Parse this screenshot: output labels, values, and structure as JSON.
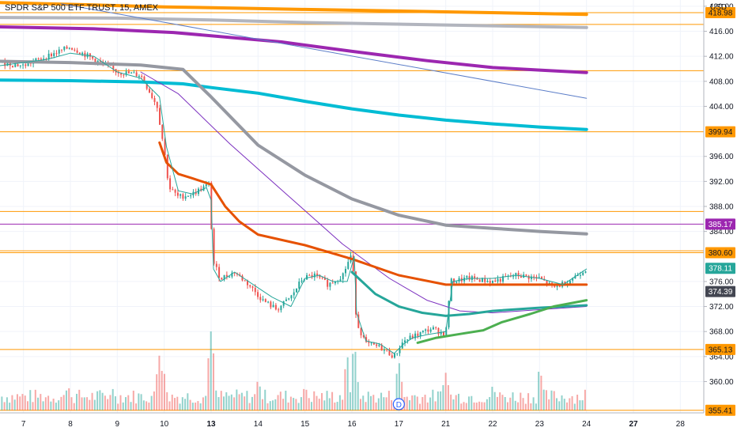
{
  "header": {
    "title": "SPDR S&P 500 ETF TRUST, 15, AMEX",
    "currency": "USD"
  },
  "chart_data": {
    "type": "candlestick",
    "title": "SPDR S&P 500 ETF TRUST, 15, AMEX",
    "ylabel": "USD",
    "ylim": [
      355,
      421
    ],
    "xlim": [
      -0.5,
      14.5
    ],
    "grid": true,
    "y_ticks": [
      360,
      364,
      368,
      372,
      376,
      384,
      388,
      392,
      396,
      404,
      408,
      412,
      416,
      420
    ],
    "x_ticks": [
      {
        "label": "7",
        "pos": 0,
        "bold": false
      },
      {
        "label": "8",
        "pos": 1,
        "bold": false
      },
      {
        "label": "9",
        "pos": 2,
        "bold": false
      },
      {
        "label": "10",
        "pos": 3,
        "bold": false
      },
      {
        "label": "13",
        "pos": 4,
        "bold": true
      },
      {
        "label": "14",
        "pos": 5,
        "bold": false
      },
      {
        "label": "15",
        "pos": 6,
        "bold": false
      },
      {
        "label": "16",
        "pos": 7,
        "bold": false
      },
      {
        "label": "17",
        "pos": 8,
        "bold": false
      },
      {
        "label": "21",
        "pos": 9,
        "bold": false
      },
      {
        "label": "22",
        "pos": 10,
        "bold": false
      },
      {
        "label": "23",
        "pos": 11,
        "bold": false
      },
      {
        "label": "24",
        "pos": 12,
        "bold": false
      },
      {
        "label": "27",
        "pos": 13,
        "bold": true
      },
      {
        "label": "28",
        "pos": 14,
        "bold": false
      }
    ],
    "price_tags": [
      {
        "value": 418.98,
        "label": "418.98",
        "color": "#ff9800",
        "text_color": "#131722"
      },
      {
        "value": 399.94,
        "label": "399.94",
        "color": "#ff9800",
        "text_color": "#131722"
      },
      {
        "value": 385.17,
        "label": "385.17",
        "color": "#9c27b0",
        "text_color": "#ffffff"
      },
      {
        "value": 380.6,
        "label": "380.60",
        "color": "#ff9800",
        "text_color": "#131722"
      },
      {
        "value": 378.11,
        "label": "378.11",
        "color": "#26a69a",
        "text_color": "#ffffff"
      },
      {
        "value": 374.39,
        "label": "374.39",
        "color": "#434651",
        "text_color": "#ffffff"
      },
      {
        "value": 365.13,
        "label": "365.13",
        "color": "#ff9800",
        "text_color": "#131722"
      },
      {
        "value": 355.41,
        "label": "355.41",
        "color": "#ff9800",
        "text_color": "#131722"
      }
    ],
    "horizontal_levels": [
      {
        "value": 418.98,
        "color": "#ff9800"
      },
      {
        "value": 417.1,
        "color": "#ff9800"
      },
      {
        "value": 409.7,
        "color": "#ff9800"
      },
      {
        "value": 399.94,
        "color": "#ff9800"
      },
      {
        "value": 387.2,
        "color": "#ff9800"
      },
      {
        "value": 385.17,
        "color": "#9c27b0"
      },
      {
        "value": 380.9,
        "color": "#ff9800"
      },
      {
        "value": 380.6,
        "color": "#ff9800"
      },
      {
        "value": 365.13,
        "color": "#ff9800"
      },
      {
        "value": 355.41,
        "color": "#ff9800"
      }
    ],
    "series": [
      {
        "id": "orange-top",
        "color": "#ff9800",
        "width": 4,
        "x": [
          -0.5,
          1,
          3,
          6,
          9,
          12
        ],
        "y": [
          420.6,
          420.3,
          419.9,
          419.5,
          419.1,
          418.7
        ]
      },
      {
        "id": "gray-top",
        "color": "#b2b5be",
        "width": 4,
        "x": [
          -0.5,
          2,
          4,
          6,
          9,
          12
        ],
        "y": [
          418.2,
          418.1,
          417.8,
          417.4,
          417.0,
          416.6
        ]
      },
      {
        "id": "purple-wide",
        "color": "#9c27b0",
        "width": 4,
        "x": [
          -0.5,
          1.5,
          3.2,
          5.5,
          7,
          8.6,
          10,
          11,
          12
        ],
        "y": [
          416.7,
          416.4,
          415.8,
          414.3,
          412.8,
          411.3,
          410.2,
          409.8,
          409.4
        ]
      },
      {
        "id": "blue-trend",
        "color": "#5b7dc8",
        "width": 1,
        "x": [
          0.8,
          12
        ],
        "y": [
          420.4,
          405.3
        ]
      },
      {
        "id": "cyan-wide",
        "color": "#00bcd4",
        "width": 4,
        "x": [
          -0.5,
          1,
          2.5,
          3.4,
          4,
          5,
          6,
          7,
          8,
          9,
          10,
          11,
          12
        ],
        "y": [
          408.2,
          408.1,
          407.9,
          407.6,
          407.0,
          406.1,
          404.8,
          403.6,
          402.6,
          401.8,
          401.2,
          400.7,
          400.3
        ]
      },
      {
        "id": "gray-wide",
        "color": "#9598a1",
        "width": 4,
        "x": [
          -0.5,
          1,
          2.5,
          3.4,
          4,
          5,
          6,
          7,
          8,
          9,
          10,
          11,
          12
        ],
        "y": [
          411.2,
          411.0,
          410.6,
          409.9,
          405.5,
          397.8,
          393.0,
          389.2,
          386.6,
          385.0,
          384.5,
          384.0,
          383.6
        ]
      },
      {
        "id": "purple-thin",
        "color": "#7b2fbf",
        "width": 1,
        "x": [
          2.5,
          3.3,
          4.4,
          5.6,
          6.8,
          7.8,
          8.6,
          9.3,
          10,
          11,
          12
        ],
        "y": [
          409.5,
          406.0,
          398.0,
          390.0,
          382.0,
          376.5,
          373.0,
          371.3,
          371.0,
          371.5,
          372.0
        ]
      },
      {
        "id": "red-wide",
        "color": "#e65100",
        "width": 3,
        "x": [
          2.9,
          3.05,
          3.3,
          3.6,
          4.0,
          4.3,
          4.6,
          5.0,
          6.0,
          7.0,
          8.0,
          9.0,
          10.0,
          11.0,
          12.0
        ],
        "y": [
          398.2,
          395.0,
          393.2,
          392.5,
          391.5,
          388.0,
          385.6,
          383.5,
          381.8,
          379.6,
          377.0,
          375.5,
          375.5,
          375.5,
          375.5
        ]
      },
      {
        "id": "teal-wide",
        "color": "#26a69a",
        "width": 3,
        "x": [
          7.0,
          7.5,
          8.0,
          8.5,
          9.0,
          9.5,
          10.0,
          11.0,
          12.0
        ],
        "y": [
          377.5,
          374.0,
          372.0,
          371.0,
          370.5,
          370.8,
          371.3,
          371.8,
          372.2
        ]
      },
      {
        "id": "green-wide",
        "color": "#4caf50",
        "width": 3,
        "x": [
          8.4,
          8.8,
          9.3,
          9.8,
          10.2,
          10.8,
          11.3,
          12.0
        ],
        "y": [
          366.2,
          367.0,
          367.6,
          368.2,
          369.5,
          370.8,
          372.0,
          373.0
        ]
      },
      {
        "id": "price-ma",
        "color": "#26a69a",
        "width": 1,
        "x": [
          -0.5,
          0.5,
          1,
          1.5,
          2,
          2.5,
          2.9,
          3.05,
          3.3,
          3.6,
          3.9,
          4.0,
          4.05,
          4.2,
          4.5,
          4.9,
          5.3,
          5.7,
          6.0,
          6.3,
          6.6,
          6.9,
          7.05,
          7.1,
          7.3,
          7.6,
          7.9,
          8.1,
          8.3,
          8.6,
          9.0,
          9.15,
          9.5,
          10.0,
          10.5,
          11.0,
          11.5,
          12.0
        ],
        "y": [
          410.5,
          411.5,
          412.5,
          412.0,
          409.5,
          408.5,
          405.5,
          397.5,
          390.5,
          390.0,
          391.0,
          389.0,
          378.0,
          376.0,
          377.5,
          375.5,
          373.5,
          372.0,
          376.5,
          377.0,
          376.0,
          376.0,
          380.0,
          371.0,
          366.5,
          366.0,
          364.5,
          366.0,
          367.0,
          367.5,
          368.0,
          376.0,
          376.5,
          376.5,
          377.0,
          376.5,
          375.5,
          378.0
        ]
      }
    ],
    "candles": {
      "up_color": "#26a69a",
      "down_color": "#ef5350",
      "anchors_x": [
        -0.5,
        0.0,
        0.5,
        1.0,
        1.5,
        2.0,
        2.5,
        2.85,
        3.0,
        3.1,
        3.3,
        3.6,
        3.95,
        4.05,
        4.2,
        4.5,
        4.8,
        5.1,
        5.4,
        5.7,
        5.95,
        6.2,
        6.5,
        6.8,
        7.0,
        7.1,
        7.3,
        7.6,
        7.9,
        8.1,
        8.4,
        8.7,
        9.0,
        9.1,
        9.5,
        10.0,
        10.5,
        11.0,
        11.3,
        11.6,
        12.0
      ],
      "anchors_y": [
        411.0,
        410.5,
        412.0,
        413.5,
        411.5,
        409.5,
        409.0,
        404.0,
        397.0,
        391.0,
        389.5,
        390.0,
        391.5,
        379.0,
        376.5,
        377.5,
        375.5,
        373.0,
        371.5,
        373.5,
        376.5,
        377.0,
        375.5,
        377.0,
        380.5,
        369.5,
        366.0,
        365.5,
        364.0,
        366.5,
        367.5,
        368.5,
        367.5,
        376.0,
        376.5,
        376.0,
        377.0,
        376.5,
        375.0,
        376.0,
        378.1
      ]
    },
    "volume": {
      "baseline_value": 355.41,
      "typical_height_value": 2.6,
      "spikes": [
        {
          "x": 3.0,
          "h": 6.0
        },
        {
          "x": 4.0,
          "h": 13.0
        },
        {
          "x": 2.9,
          "h": 9.0
        },
        {
          "x": 5.0,
          "h": 5.0
        },
        {
          "x": 6.0,
          "h": 4.0
        },
        {
          "x": 6.9,
          "h": 9.0
        },
        {
          "x": 7.05,
          "h": 11.0
        },
        {
          "x": 7.1,
          "h": 5.5
        },
        {
          "x": 8.0,
          "h": 8.0
        },
        {
          "x": 8.05,
          "h": 5.0
        },
        {
          "x": 9.0,
          "h": 6.0
        },
        {
          "x": 10.0,
          "h": 4.0
        },
        {
          "x": 11.0,
          "h": 7.0
        },
        {
          "x": 12.0,
          "h": 4.0
        },
        {
          "x": 1.9,
          "h": 3.5
        },
        {
          "x": 0.95,
          "h": 4.0
        }
      ]
    },
    "dividend_marker": {
      "x": 8.0,
      "label": "D"
    }
  }
}
